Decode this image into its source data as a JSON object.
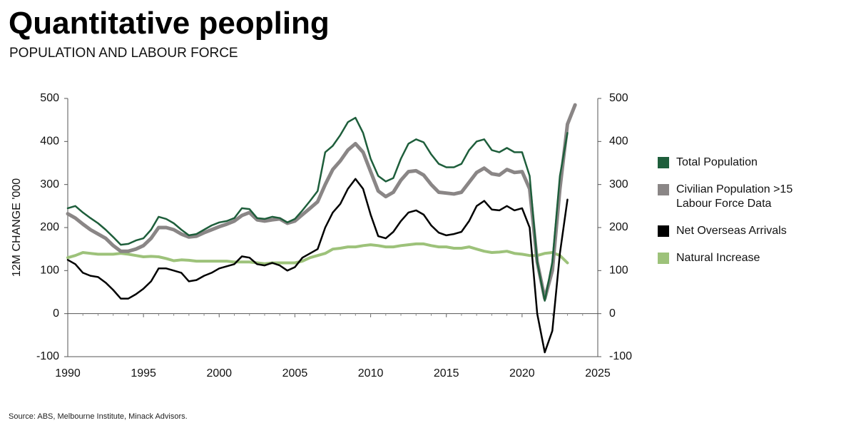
{
  "chart_data": {
    "type": "line",
    "title": "Quantitative peopling",
    "subtitle": "POPULATION AND LABOUR FORCE",
    "y_label": "12M CHANGE '000",
    "source": "Source: ABS, Melbourne Institute, Minack Advisors.",
    "xlim": [
      1990,
      2025
    ],
    "xticks": [
      1990,
      1995,
      2000,
      2005,
      2010,
      2015,
      2020,
      2025
    ],
    "ylim": [
      -100,
      500
    ],
    "yticks": [
      -100,
      0,
      100,
      200,
      300,
      400,
      500
    ],
    "y2lim": [
      -100,
      500
    ],
    "y2ticks": [
      -100,
      0,
      100,
      200,
      300,
      400,
      500
    ],
    "x": [
      1990,
      1990.5,
      1991,
      1991.5,
      1992,
      1992.5,
      1993,
      1993.5,
      1994,
      1994.5,
      1995,
      1995.5,
      1996,
      1996.5,
      1997,
      1997.5,
      1998,
      1998.5,
      1999,
      1999.5,
      2000,
      2000.5,
      2001,
      2001.5,
      2002,
      2002.5,
      2003,
      2003.5,
      2004,
      2004.5,
      2005,
      2005.5,
      2006,
      2006.5,
      2007,
      2007.5,
      2008,
      2008.5,
      2009,
      2009.5,
      2010,
      2010.5,
      2011,
      2011.5,
      2012,
      2012.5,
      2013,
      2013.5,
      2014,
      2014.5,
      2015,
      2015.5,
      2016,
      2016.5,
      2017,
      2017.5,
      2018,
      2018.5,
      2019,
      2019.5,
      2020,
      2020.5,
      2021,
      2021.5,
      2022,
      2022.5,
      2023,
      2023.5
    ],
    "series": [
      {
        "name": "Total Population",
        "color": "#1e5e3b",
        "values": [
          245,
          250,
          235,
          222,
          210,
          195,
          178,
          160,
          162,
          170,
          175,
          195,
          225,
          220,
          210,
          195,
          182,
          185,
          195,
          205,
          212,
          215,
          222,
          245,
          243,
          222,
          220,
          225,
          222,
          212,
          220,
          240,
          262,
          285,
          375,
          390,
          415,
          445,
          455,
          420,
          360,
          320,
          307,
          315,
          360,
          395,
          405,
          398,
          370,
          348,
          340,
          340,
          348,
          380,
          400,
          405,
          380,
          375,
          385,
          375,
          375,
          320,
          120,
          30,
          120,
          320,
          420,
          null
        ]
      },
      {
        "name": "Civilian Population >15 Labour Force Data",
        "color": "#8a8686",
        "values": [
          232,
          222,
          208,
          195,
          185,
          175,
          158,
          145,
          145,
          150,
          158,
          175,
          200,
          200,
          195,
          185,
          178,
          180,
          188,
          195,
          202,
          208,
          215,
          228,
          235,
          218,
          215,
          218,
          220,
          210,
          215,
          230,
          245,
          260,
          300,
          335,
          355,
          380,
          395,
          375,
          330,
          285,
          272,
          282,
          310,
          330,
          332,
          322,
          300,
          282,
          280,
          278,
          282,
          305,
          328,
          338,
          325,
          322,
          335,
          328,
          330,
          290,
          120,
          35,
          100,
          290,
          440,
          485
        ]
      },
      {
        "name": "Net Overseas Arrivals",
        "color": "#000000",
        "values": [
          125,
          115,
          95,
          88,
          85,
          72,
          55,
          35,
          35,
          45,
          58,
          75,
          105,
          105,
          100,
          95,
          75,
          78,
          88,
          95,
          105,
          110,
          115,
          133,
          130,
          115,
          112,
          118,
          112,
          100,
          108,
          130,
          140,
          150,
          200,
          235,
          255,
          290,
          313,
          290,
          230,
          180,
          175,
          190,
          215,
          235,
          240,
          230,
          205,
          188,
          182,
          185,
          190,
          215,
          250,
          262,
          242,
          240,
          250,
          240,
          245,
          200,
          0,
          -90,
          -40,
          140,
          265,
          null
        ]
      },
      {
        "name": "Natural Increase",
        "color": "#9dc27a",
        "values": [
          130,
          135,
          142,
          140,
          138,
          138,
          138,
          140,
          138,
          135,
          132,
          133,
          132,
          128,
          123,
          125,
          124,
          122,
          122,
          122,
          122,
          122,
          120,
          120,
          120,
          118,
          116,
          118,
          118,
          118,
          118,
          122,
          130,
          135,
          140,
          150,
          152,
          155,
          155,
          158,
          160,
          158,
          155,
          155,
          158,
          160,
          162,
          162,
          158,
          155,
          155,
          152,
          152,
          155,
          150,
          145,
          142,
          143,
          145,
          140,
          138,
          135,
          135,
          140,
          142,
          135,
          118,
          null
        ]
      }
    ]
  }
}
